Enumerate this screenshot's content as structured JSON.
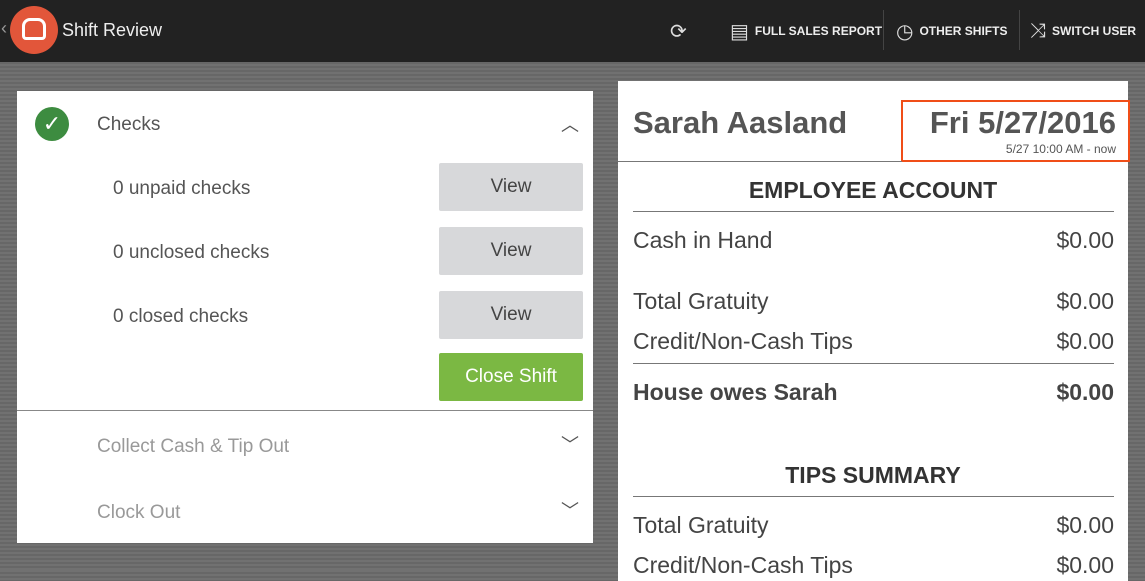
{
  "header": {
    "title": "Shift Review",
    "actions": [
      {
        "label": "FULL SALES REPORT",
        "icon": "report-icon"
      },
      {
        "label": "OTHER SHIFTS",
        "icon": "clock-icon"
      },
      {
        "label": "SWITCH USER",
        "icon": "shuffle-icon"
      }
    ]
  },
  "steps": {
    "checks": {
      "title": "Checks",
      "rows": [
        {
          "label": "0 unpaid checks",
          "button": "View"
        },
        {
          "label": "0 unclosed checks",
          "button": "View"
        },
        {
          "label": "0 closed checks",
          "button": "View"
        }
      ],
      "close_shift": "Close Shift"
    },
    "collect": "Collect Cash & Tip Out",
    "clockout": "Clock Out"
  },
  "summary": {
    "employee": "Sarah Aasland",
    "date": "Fri 5/27/2016",
    "range": "5/27 10:00 AM - now",
    "account_title": "EMPLOYEE ACCOUNT",
    "account": [
      {
        "label": "Cash in Hand",
        "value": "$0.00"
      },
      {
        "label": "Total Gratuity",
        "value": "$0.00"
      },
      {
        "label": "Credit/Non-Cash Tips",
        "value": "$0.00"
      }
    ],
    "total": {
      "label": "House owes Sarah",
      "value": "$0.00"
    },
    "tips_title": "TIPS SUMMARY",
    "tips": [
      {
        "label": "Total Gratuity",
        "value": "$0.00"
      },
      {
        "label": "Credit/Non-Cash Tips",
        "value": "$0.00"
      }
    ]
  },
  "colors": {
    "accent": "#e2563a",
    "success": "#3d8c40",
    "button_green": "#7bb843",
    "highlight": "#f04e18"
  }
}
